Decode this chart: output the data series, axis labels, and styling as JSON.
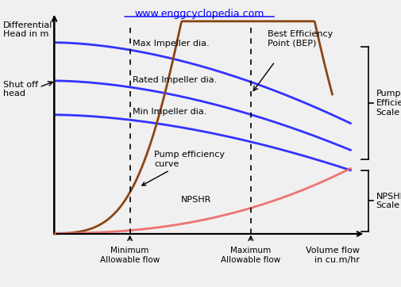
{
  "title": "www.enggcyclopedia.com",
  "title_color": "blue",
  "bg_color": "#f0f0f0",
  "xlim": [
    -1.8,
    11.5
  ],
  "ylim": [
    -2.5,
    11.0
  ],
  "left_ylabel": "Differential\nHead in m",
  "bottom_xlabel": "Volume flow\nin cu.m/hr",
  "shut_off_head_label": "Shut off\nhead",
  "min_allow_flow_label": "Minimum\nAllowable flow",
  "max_allow_flow_label": "Maximum\nAllowable flow",
  "min_allow_x": 2.5,
  "max_allow_x": 6.5,
  "pump_efficiency_scale_label": "Pump\nEfficiency\nScale",
  "npshr_scale_label": "NPSHR\nScale",
  "best_efficiency_label": "Best Efficiency\nPoint (BEP)",
  "max_impeller_label": "Max Impeller dia.",
  "rated_impeller_label": "Rated Impeller dia.",
  "min_impeller_label": "Min Impeller dia.",
  "pump_eff_curve_label": "Pump efficiency\ncurve",
  "npshr_label": "NPSHR",
  "blue_color": "#3333ff",
  "brown_color": "#8B4513",
  "red_color": "#ee6666",
  "arrow_color": "black"
}
